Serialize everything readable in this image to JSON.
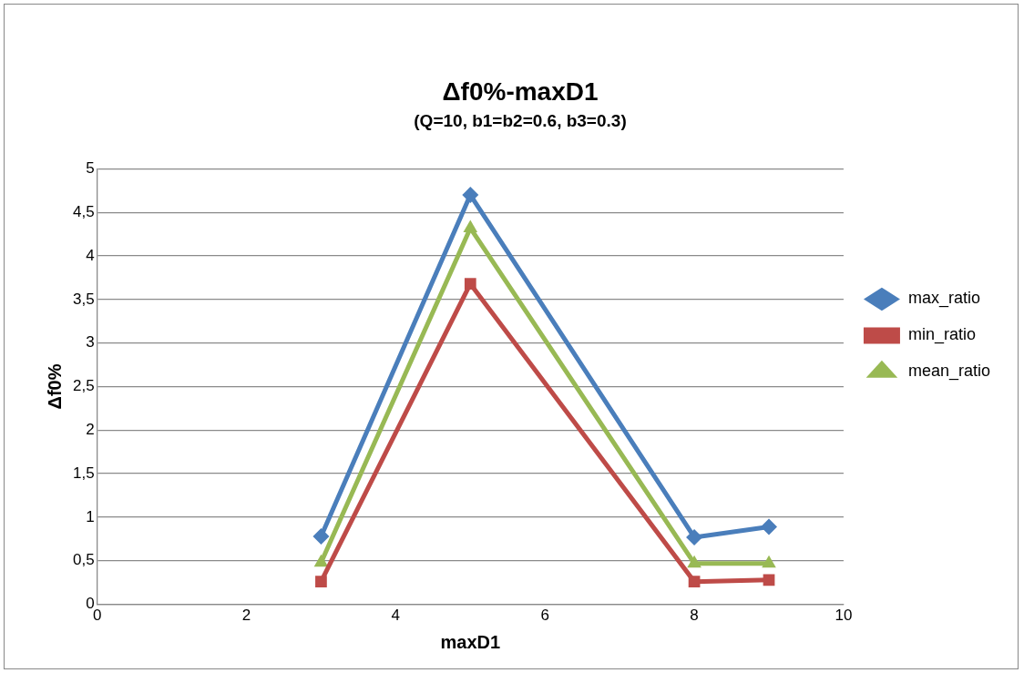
{
  "chart_data": {
    "type": "line",
    "title": "Δf0%-maxD1",
    "subtitle": "(Q=10, b1=b2=0.6, b3=0.3)",
    "xlabel": "maxD1",
    "ylabel": "Δf0%",
    "x": [
      3,
      5,
      8,
      9
    ],
    "series": [
      {
        "name": "max_ratio",
        "color": "#4a7ebb",
        "marker": "diamond",
        "values": [
          0.78,
          4.7,
          0.77,
          0.89
        ]
      },
      {
        "name": "min_ratio",
        "color": "#be4b48",
        "marker": "square",
        "values": [
          0.26,
          3.68,
          0.26,
          0.28
        ]
      },
      {
        "name": "mean_ratio",
        "color": "#98b954",
        "marker": "triangle",
        "values": [
          0.48,
          4.32,
          0.47,
          0.47
        ]
      }
    ],
    "xlim": [
      0,
      10
    ],
    "xticks": [
      0,
      2,
      4,
      6,
      8,
      10
    ],
    "ylim": [
      0,
      5
    ],
    "yticks": [
      0,
      {
        "value": 0.5,
        "label": "0,5"
      },
      1,
      {
        "value": 1.5,
        "label": "1,5"
      },
      2,
      {
        "value": 2.5,
        "label": "2,5"
      },
      3,
      {
        "value": 3.5,
        "label": "3,5"
      },
      4,
      {
        "value": 4.5,
        "label": "4,5"
      },
      5
    ],
    "grid": "y",
    "legend": "right",
    "line_style": "solid"
  }
}
